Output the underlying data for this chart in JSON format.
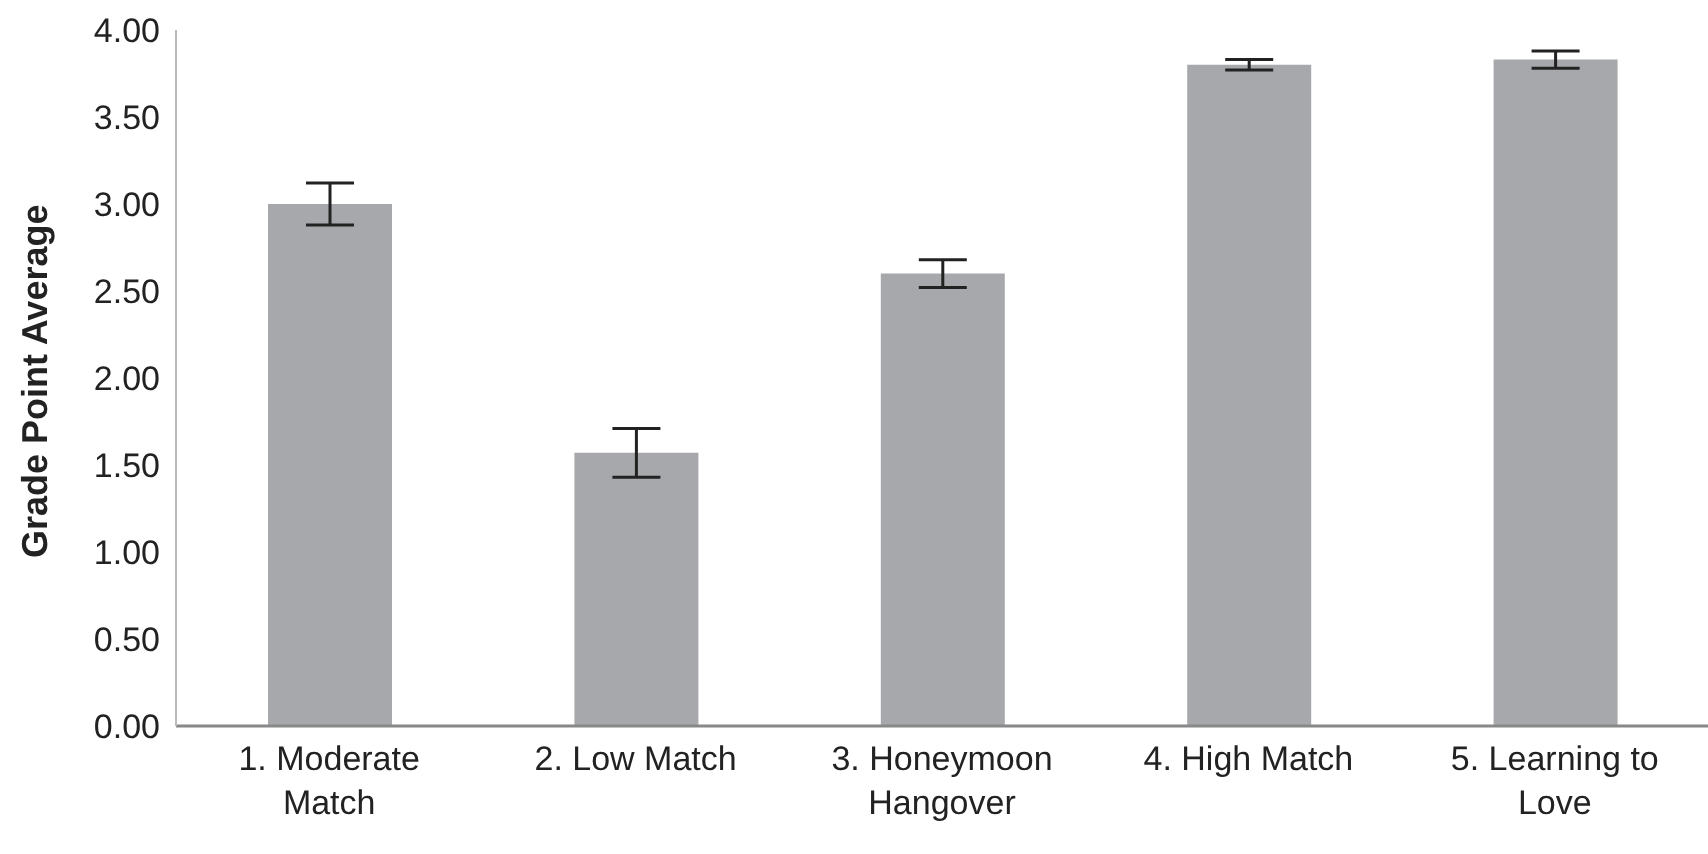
{
  "chart_data": {
    "type": "bar",
    "ylabel": "Grade Point Average",
    "categories": [
      "1. Moderate Match",
      "2. Low Match",
      "3. Honeymoon Hangover",
      "4. High Match",
      "5. Learning to Love"
    ],
    "values": [
      3.0,
      1.57,
      2.6,
      3.8,
      3.83
    ],
    "errors": [
      0.12,
      0.14,
      0.08,
      0.03,
      0.05
    ],
    "color": "#a7a8ab",
    "ylim": [
      0,
      4
    ],
    "yticks": [
      {
        "value": 0,
        "label": "0.00"
      },
      {
        "value": 0.5,
        "label": "0.50"
      },
      {
        "value": 1,
        "label": "1.00"
      },
      {
        "value": 1.5,
        "label": "1.50"
      },
      {
        "value": 2,
        "label": "2.00"
      },
      {
        "value": 2.5,
        "label": "2.50"
      },
      {
        "value": 3,
        "label": "3.00"
      },
      {
        "value": 3.5,
        "label": "3.50"
      },
      {
        "value": 4,
        "label": "4.00"
      }
    ],
    "grid": false,
    "legend": false
  }
}
